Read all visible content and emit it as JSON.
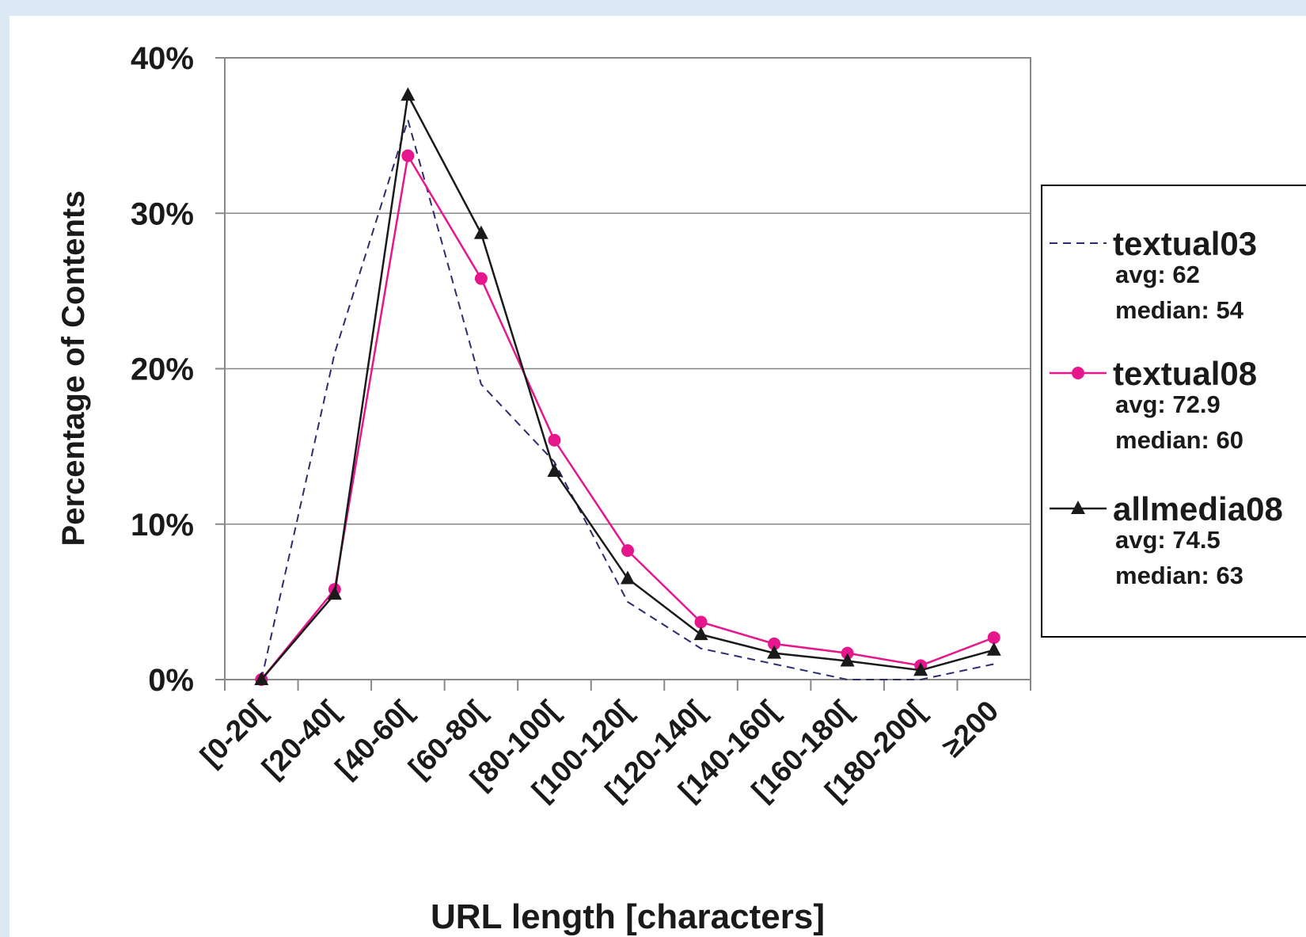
{
  "chart_data": {
    "type": "line",
    "xlabel": "URL length [characters]",
    "ylabel": "Percentage of Contents",
    "ylim": [
      0,
      40
    ],
    "yticks": [
      "0%",
      "10%",
      "20%",
      "30%",
      "40%"
    ],
    "categories": [
      "[0-20[",
      "[20-40[",
      "[40-60[",
      "[60-80[",
      "[80-100[",
      "[100-120[",
      "[120-140[",
      "[140-160[",
      "[160-180[",
      "[180-200[",
      "≥200"
    ],
    "grid": "horizontal",
    "legend_position": "right",
    "series": [
      {
        "name": "textual03",
        "avg": "avg: 62",
        "median": "median: 54",
        "color": "#2b2d6e",
        "style": "dashed",
        "marker": "none",
        "values": [
          0,
          21,
          36,
          19,
          14,
          5,
          2,
          1,
          0,
          0,
          1
        ]
      },
      {
        "name": "textual08",
        "avg": "avg: 72.9",
        "median": "median: 60",
        "color": "#e6168c",
        "style": "solid",
        "marker": "circle",
        "values": [
          0,
          5.8,
          33.7,
          25.8,
          15.4,
          8.3,
          3.7,
          2.3,
          1.7,
          0.9,
          2.7
        ]
      },
      {
        "name": "allmedia08",
        "avg": "avg: 74.5",
        "median": "median: 63",
        "color": "#1a1a1a",
        "style": "solid",
        "marker": "triangle",
        "values": [
          0,
          5.5,
          37.6,
          28.7,
          13.4,
          6.5,
          2.9,
          1.7,
          1.2,
          0.6,
          1.9
        ]
      }
    ]
  }
}
